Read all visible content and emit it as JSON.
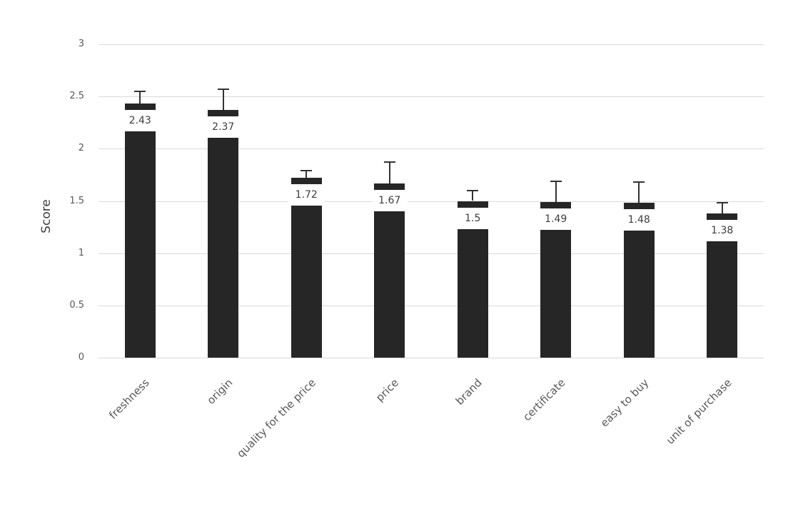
{
  "chart_data": {
    "type": "bar",
    "title": "",
    "xlabel": "",
    "ylabel": "Score",
    "categories": [
      "freshness",
      "origin",
      "quality for the price",
      "price",
      "brand",
      "certificate",
      "easy to buy",
      "unit of purchase"
    ],
    "values": [
      2.43,
      2.37,
      1.72,
      1.67,
      1.5,
      1.49,
      1.48,
      1.38
    ],
    "data_labels": [
      "2.43",
      "2.37",
      "1.72",
      "1.67",
      "1.5",
      "1.49",
      "1.48",
      "1.38"
    ],
    "error_plus": [
      0.12,
      0.2,
      0.07,
      0.2,
      0.1,
      0.2,
      0.2,
      0.1
    ],
    "ylim": [
      0,
      3
    ],
    "yticks": [
      0,
      0.5,
      1,
      1.5,
      2,
      2.5,
      3
    ],
    "ytick_labels": [
      "0",
      "0.5",
      "1",
      "1.5",
      "2",
      "2.5",
      "3"
    ],
    "grid": true,
    "legend": "none",
    "error_bars": "plus_direction_only",
    "colors": {
      "bar": "#262626",
      "error_bar": "#333333",
      "gridline": "#d9d9d9",
      "tick_label": "#595959",
      "category_label": "#595959",
      "value_label": "#3d3d3d",
      "background": "#ffffff"
    }
  }
}
